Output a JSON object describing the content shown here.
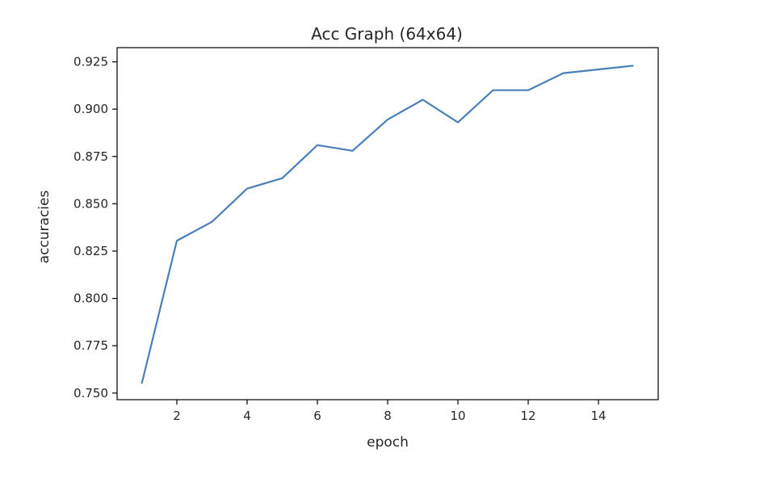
{
  "chart_data": {
    "type": "line",
    "title": "Acc Graph (64x64)",
    "xlabel": "epoch",
    "ylabel": "accuracies",
    "xlim": [
      0.3,
      15.7
    ],
    "ylim": [
      0.7465,
      0.9325
    ],
    "xticks": [
      2,
      4,
      6,
      8,
      10,
      12,
      14
    ],
    "xtick_labels": [
      "2",
      "4",
      "6",
      "8",
      "10",
      "12",
      "14"
    ],
    "yticks": [
      0.75,
      0.775,
      0.8,
      0.825,
      0.85,
      0.875,
      0.9,
      0.925
    ],
    "ytick_labels": [
      "0.750",
      "0.775",
      "0.800",
      "0.825",
      "0.850",
      "0.875",
      "0.900",
      "0.925"
    ],
    "grid": false,
    "series": [
      {
        "color": "#4a7fb8",
        "x": [
          1,
          2,
          3,
          4,
          5,
          6,
          7,
          8,
          9,
          10,
          11,
          12,
          13,
          14,
          15
        ],
        "y": [
          0.755,
          0.8305,
          0.8405,
          0.858,
          0.8635,
          0.881,
          0.878,
          0.8945,
          0.905,
          0.893,
          0.91,
          0.91,
          0.919,
          0.921,
          0.923
        ]
      }
    ]
  }
}
